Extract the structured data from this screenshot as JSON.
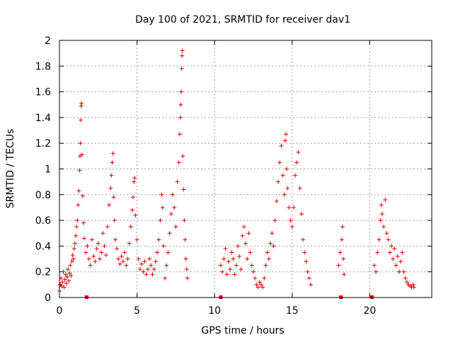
{
  "chart_data": {
    "type": "scatter",
    "title": "Day 100 of 2021, SRMTID for receiver dav1",
    "xlabel": "GPS time / hours",
    "ylabel": "SRMTID / TECUs",
    "xlim": [
      0,
      24
    ],
    "ylim": [
      0,
      2
    ],
    "x_ticks": [
      0,
      5,
      10,
      15,
      20
    ],
    "x_tick_labels": [
      "0",
      "5",
      "10",
      "15",
      "20"
    ],
    "y_ticks": [
      0,
      0.2,
      0.4,
      0.6,
      0.8,
      1,
      1.2,
      1.4,
      1.6,
      1.8,
      2
    ],
    "y_tick_labels": [
      "0",
      "0.2",
      "0.4",
      "0.6",
      "0.8",
      "1",
      "1.2",
      "1.4",
      "1.6",
      "1.8",
      "2"
    ],
    "grid": true,
    "marker": "+",
    "color": "#e00000",
    "gap_markers_x": [
      1.75,
      10.4,
      18.15,
      20.15
    ],
    "series": [
      {
        "name": "SRMTID",
        "points": [
          [
            0.0,
            0.05
          ],
          [
            0.05,
            0.1
          ],
          [
            0.1,
            0.15
          ],
          [
            0.15,
            0.09
          ],
          [
            0.2,
            0.12
          ],
          [
            0.25,
            0.2
          ],
          [
            0.3,
            0.08
          ],
          [
            0.35,
            0.14
          ],
          [
            0.4,
            0.18
          ],
          [
            0.45,
            0.11
          ],
          [
            0.5,
            0.16
          ],
          [
            0.55,
            0.22
          ],
          [
            0.6,
            0.13
          ],
          [
            0.65,
            0.19
          ],
          [
            0.7,
            0.25
          ],
          [
            0.75,
            0.17
          ],
          [
            0.8,
            0.28
          ],
          [
            0.85,
            0.33
          ],
          [
            0.9,
            0.3
          ],
          [
            0.95,
            0.38
          ],
          [
            1.0,
            0.42
          ],
          [
            1.05,
            0.48
          ],
          [
            1.1,
            0.55
          ],
          [
            1.15,
            0.6
          ],
          [
            1.2,
            0.72
          ],
          [
            1.25,
            0.83
          ],
          [
            1.3,
            0.99
          ],
          [
            1.32,
            1.1
          ],
          [
            1.35,
            1.2
          ],
          [
            1.38,
            1.38
          ],
          [
            1.4,
            1.49
          ],
          [
            1.42,
            1.51
          ],
          [
            1.45,
            1.11
          ],
          [
            1.5,
            0.79
          ],
          [
            1.55,
            0.58
          ],
          [
            1.6,
            0.46
          ],
          [
            1.7,
            0.35
          ],
          [
            1.8,
            0.4
          ],
          [
            1.9,
            0.3
          ],
          [
            2.0,
            0.25
          ],
          [
            2.1,
            0.45
          ],
          [
            2.2,
            0.32
          ],
          [
            2.3,
            0.28
          ],
          [
            2.4,
            0.38
          ],
          [
            2.5,
            0.42
          ],
          [
            2.6,
            0.3
          ],
          [
            2.7,
            0.35
          ],
          [
            2.8,
            0.5
          ],
          [
            2.9,
            0.4
          ],
          [
            3.0,
            0.33
          ],
          [
            3.1,
            0.55
          ],
          [
            3.2,
            0.72
          ],
          [
            3.3,
            0.85
          ],
          [
            3.35,
            0.95
          ],
          [
            3.4,
            1.05
          ],
          [
            3.45,
            1.12
          ],
          [
            3.5,
            0.78
          ],
          [
            3.55,
            0.6
          ],
          [
            3.6,
            0.45
          ],
          [
            3.7,
            0.38
          ],
          [
            3.8,
            0.3
          ],
          [
            3.9,
            0.26
          ],
          [
            4.0,
            0.32
          ],
          [
            4.1,
            0.28
          ],
          [
            4.2,
            0.35
          ],
          [
            4.3,
            0.25
          ],
          [
            4.4,
            0.3
          ],
          [
            4.5,
            0.42
          ],
          [
            4.6,
            0.55
          ],
          [
            4.7,
            0.68
          ],
          [
            4.75,
            0.78
          ],
          [
            4.8,
            0.9
          ],
          [
            4.85,
            0.93
          ],
          [
            4.9,
            0.64
          ],
          [
            5.0,
            0.45
          ],
          [
            5.1,
            0.3
          ],
          [
            5.2,
            0.22
          ],
          [
            5.3,
            0.26
          ],
          [
            5.4,
            0.2
          ],
          [
            5.5,
            0.28
          ],
          [
            5.6,
            0.18
          ],
          [
            5.7,
            0.22
          ],
          [
            5.8,
            0.3
          ],
          [
            5.9,
            0.25
          ],
          [
            6.0,
            0.18
          ],
          [
            6.1,
            0.22
          ],
          [
            6.2,
            0.28
          ],
          [
            6.3,
            0.35
          ],
          [
            6.4,
            0.45
          ],
          [
            6.5,
            0.6
          ],
          [
            6.6,
            0.8
          ],
          [
            6.65,
            0.7
          ],
          [
            6.7,
            0.4
          ],
          [
            6.8,
            0.15
          ],
          [
            6.9,
            0.25
          ],
          [
            7.0,
            0.35
          ],
          [
            7.1,
            0.5
          ],
          [
            7.2,
            0.65
          ],
          [
            7.3,
            0.8
          ],
          [
            7.4,
            0.7
          ],
          [
            7.5,
            0.55
          ],
          [
            7.6,
            0.9
          ],
          [
            7.7,
            1.05
          ],
          [
            7.75,
            1.27
          ],
          [
            7.8,
            1.4
          ],
          [
            7.82,
            1.5
          ],
          [
            7.85,
            1.6
          ],
          [
            7.88,
            1.78
          ],
          [
            7.9,
            1.88
          ],
          [
            7.92,
            1.92
          ],
          [
            7.95,
            1.1
          ],
          [
            8.0,
            0.84
          ],
          [
            8.05,
            0.6
          ],
          [
            8.1,
            0.45
          ],
          [
            8.15,
            0.3
          ],
          [
            8.2,
            0.22
          ],
          [
            8.25,
            0.15
          ],
          [
            10.4,
            0.25
          ],
          [
            10.5,
            0.2
          ],
          [
            10.6,
            0.3
          ],
          [
            10.7,
            0.38
          ],
          [
            10.8,
            0.18
          ],
          [
            10.9,
            0.28
          ],
          [
            11.0,
            0.22
          ],
          [
            11.1,
            0.35
          ],
          [
            11.2,
            0.3
          ],
          [
            11.3,
            0.18
          ],
          [
            11.4,
            0.25
          ],
          [
            11.5,
            0.4
          ],
          [
            11.6,
            0.32
          ],
          [
            11.7,
            0.22
          ],
          [
            11.8,
            0.48
          ],
          [
            11.9,
            0.55
          ],
          [
            12.0,
            0.42
          ],
          [
            12.1,
            0.3
          ],
          [
            12.2,
            0.5
          ],
          [
            12.3,
            0.35
          ],
          [
            12.4,
            0.25
          ],
          [
            12.5,
            0.2
          ],
          [
            12.6,
            0.15
          ],
          [
            12.7,
            0.1
          ],
          [
            12.8,
            0.08
          ],
          [
            12.9,
            0.12
          ],
          [
            13.0,
            0.1
          ],
          [
            13.1,
            0.08
          ],
          [
            13.2,
            0.15
          ],
          [
            13.3,
            0.25
          ],
          [
            13.4,
            0.35
          ],
          [
            13.5,
            0.3
          ],
          [
            13.6,
            0.42
          ],
          [
            13.7,
            0.5
          ],
          [
            13.8,
            0.4
          ],
          [
            13.9,
            0.6
          ],
          [
            14.0,
            0.75
          ],
          [
            14.1,
            0.9
          ],
          [
            14.2,
            1.05
          ],
          [
            14.3,
            1.18
          ],
          [
            14.4,
            0.95
          ],
          [
            14.5,
            0.8
          ],
          [
            14.55,
            1.22
          ],
          [
            14.6,
            1.27
          ],
          [
            14.65,
            1.0
          ],
          [
            14.7,
            0.85
          ],
          [
            14.8,
            0.7
          ],
          [
            14.9,
            0.6
          ],
          [
            15.0,
            0.55
          ],
          [
            15.1,
            0.7
          ],
          [
            15.2,
            0.95
          ],
          [
            15.3,
            1.05
          ],
          [
            15.4,
            1.13
          ],
          [
            15.5,
            0.85
          ],
          [
            15.6,
            0.65
          ],
          [
            15.7,
            0.45
          ],
          [
            15.8,
            0.35
          ],
          [
            15.9,
            0.28
          ],
          [
            16.0,
            0.2
          ],
          [
            16.1,
            0.15
          ],
          [
            16.2,
            0.1
          ],
          [
            18.0,
            0.25
          ],
          [
            18.1,
            0.35
          ],
          [
            18.2,
            0.45
          ],
          [
            18.25,
            0.55
          ],
          [
            18.3,
            0.3
          ],
          [
            18.35,
            0.18
          ],
          [
            20.3,
            0.25
          ],
          [
            20.4,
            0.2
          ],
          [
            20.5,
            0.35
          ],
          [
            20.6,
            0.45
          ],
          [
            20.7,
            0.6
          ],
          [
            20.75,
            0.72
          ],
          [
            20.8,
            0.65
          ],
          [
            20.9,
            0.55
          ],
          [
            21.0,
            0.76
          ],
          [
            21.1,
            0.5
          ],
          [
            21.2,
            0.45
          ],
          [
            21.3,
            0.35
          ],
          [
            21.4,
            0.4
          ],
          [
            21.5,
            0.3
          ],
          [
            21.6,
            0.38
          ],
          [
            21.7,
            0.25
          ],
          [
            21.8,
            0.32
          ],
          [
            21.9,
            0.2
          ],
          [
            22.0,
            0.28
          ],
          [
            22.1,
            0.35
          ],
          [
            22.2,
            0.2
          ],
          [
            22.3,
            0.15
          ],
          [
            22.4,
            0.12
          ],
          [
            22.5,
            0.1
          ],
          [
            22.6,
            0.09
          ],
          [
            22.7,
            0.08
          ],
          [
            22.8,
            0.1
          ],
          [
            22.85,
            0.08
          ]
        ]
      }
    ]
  }
}
